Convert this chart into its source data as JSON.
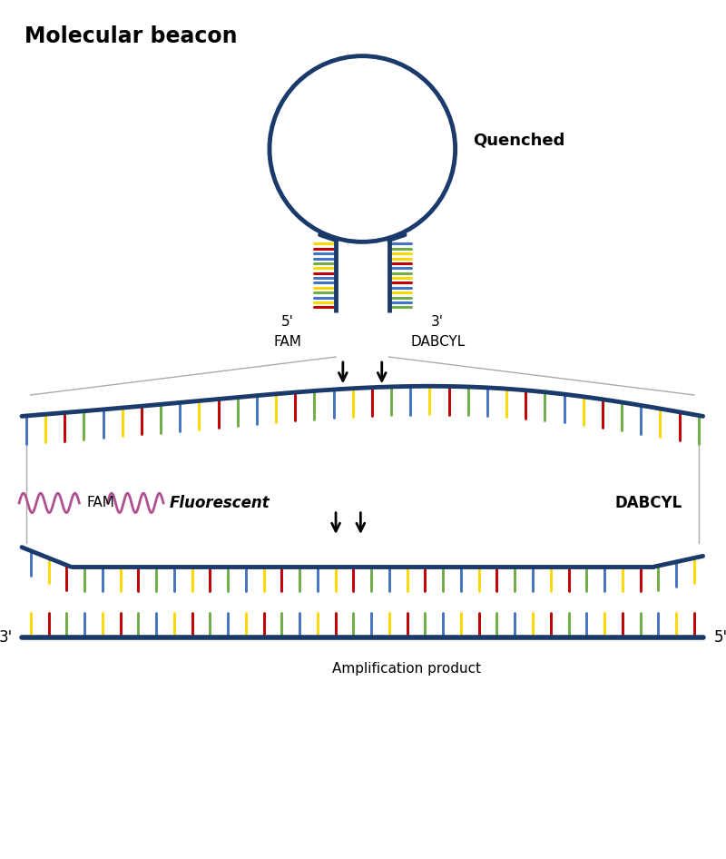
{
  "title": "Molecular beacon",
  "bg_color": "#ffffff",
  "dna_color": "#1a3a6b",
  "dna_lw": 3.0,
  "tick_lw": 2.2,
  "base_colors": [
    "#4472c4",
    "#ffd700",
    "#c00000",
    "#70ad47"
  ],
  "fam_color": "#b05090",
  "arrow_color": "#000000",
  "guide_line_color": "#aaaaaa",
  "quenched_text": "Quenched",
  "fam_label": "FAM",
  "dabcyl_label": "DABCYL",
  "fluorescent_label": "Fluorescent",
  "amp_label": "Amplification product",
  "prime5": "5'",
  "prime3": "3'",
  "stem_left_colors": [
    "#ffd700",
    "#c00000",
    "#4472c4",
    "#4472c4",
    "#70ad47",
    "#ffd700",
    "#c00000",
    "#4472c4",
    "#4472c4",
    "#ffd700",
    "#70ad47",
    "#4472c4",
    "#ffd700",
    "#c00000"
  ],
  "stem_right_colors": [
    "#4472c4",
    "#70ad47",
    "#ffd700",
    "#ffd700",
    "#c00000",
    "#4472c4",
    "#70ad47",
    "#ffd700",
    "#c00000",
    "#4472c4",
    "#ffd700",
    "#70ad47",
    "#4472c4",
    "#70ad47"
  ]
}
